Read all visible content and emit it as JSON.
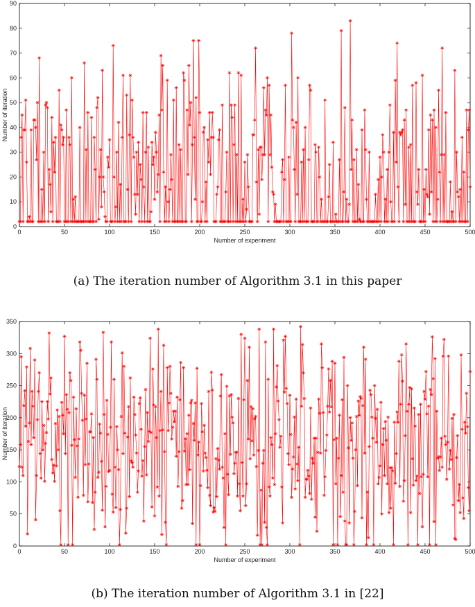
{
  "chart_data": [
    {
      "type": "line",
      "caption": "(a)  The iteration number of Algorithm 3.1 in this paper",
      "xlabel": "Number of experiment",
      "ylabel": "Number of iteration",
      "xlim": [
        0,
        500
      ],
      "ylim": [
        0,
        90
      ],
      "xticks": [
        0,
        50,
        100,
        150,
        200,
        250,
        300,
        350,
        400,
        450,
        500
      ],
      "yticks": [
        0,
        10,
        20,
        30,
        40,
        50,
        60,
        70,
        80,
        90
      ],
      "color": "#ff0000",
      "marker": "asterisk",
      "grid": false,
      "generated": true,
      "params": {
        "n": 500,
        "seed": 12345,
        "low_value": 2,
        "low_prob": 0.42,
        "mean": 30,
        "spread": 18,
        "max": 83,
        "min": 2
      },
      "peaks": [
        [
          22,
          68
        ],
        [
          58,
          60
        ],
        [
          72,
          66
        ],
        [
          92,
          63
        ],
        [
          104,
          73
        ],
        [
          159,
          65
        ],
        [
          193,
          75
        ],
        [
          262,
          72
        ],
        [
          302,
          78
        ],
        [
          357,
          79
        ],
        [
          367,
          83
        ],
        [
          419,
          74
        ],
        [
          469,
          72
        ],
        [
          483,
          63
        ]
      ]
    },
    {
      "type": "line",
      "caption": "(b)  The iteration number of Algorithm 3.1 in [22]",
      "xlabel": "Number of experiment",
      "ylabel": "Number of iteration",
      "xlim": [
        0,
        500
      ],
      "ylim": [
        0,
        350
      ],
      "xticks": [
        0,
        50,
        100,
        150,
        200,
        250,
        300,
        350,
        400,
        450,
        500
      ],
      "yticks": [
        0,
        50,
        100,
        150,
        200,
        250,
        300,
        350
      ],
      "color": "#ff0000",
      "marker": "asterisk",
      "grid": false,
      "generated": true,
      "params": {
        "n": 500,
        "seed": 98765,
        "low_value": 2,
        "low_prob": 0.03,
        "mean": 160,
        "spread": 75,
        "max": 342,
        "min": 2
      },
      "peaks": [
        [
          2,
          295
        ],
        [
          68,
          305
        ],
        [
          93,
          333
        ],
        [
          102,
          318
        ],
        [
          160,
          313
        ],
        [
          255,
          310
        ],
        [
          273,
          318
        ],
        [
          295,
          327
        ],
        [
          312,
          342
        ],
        [
          335,
          315
        ],
        [
          360,
          294
        ],
        [
          382,
          310
        ],
        [
          471,
          322
        ],
        [
          500,
          272
        ]
      ]
    }
  ]
}
